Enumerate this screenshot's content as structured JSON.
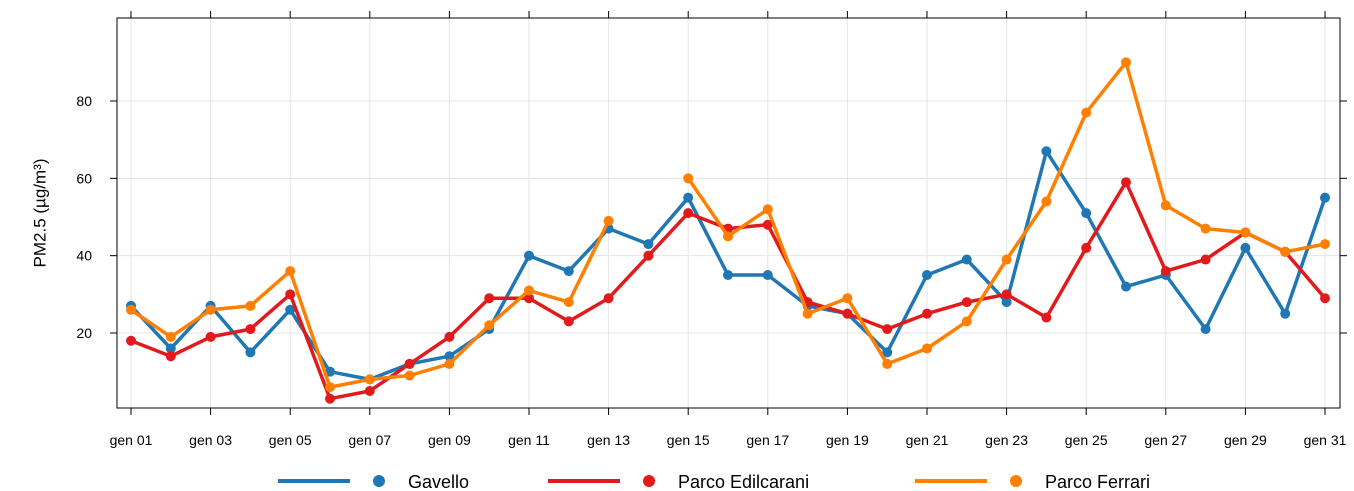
{
  "chart_data": {
    "type": "line",
    "title": "",
    "xlabel": "",
    "ylabel": "PM2.5 (µg/m³)",
    "ylim": [
      0,
      100
    ],
    "grid": true,
    "legend_position": "bottom",
    "x": [
      "gen 01",
      "gen 02",
      "gen 03",
      "gen 04",
      "gen 05",
      "gen 06",
      "gen 07",
      "gen 08",
      "gen 09",
      "gen 10",
      "gen 11",
      "gen 12",
      "gen 13",
      "gen 14",
      "gen 15",
      "gen 16",
      "gen 17",
      "gen 18",
      "gen 19",
      "gen 20",
      "gen 21",
      "gen 22",
      "gen 23",
      "gen 24",
      "gen 25",
      "gen 26",
      "gen 27",
      "gen 28",
      "gen 29",
      "gen 30",
      "gen 31"
    ],
    "x_tick_labels": [
      "gen 01",
      "gen 03",
      "gen 05",
      "gen 07",
      "gen 09",
      "gen 11",
      "gen 13",
      "gen 15",
      "gen 17",
      "gen 19",
      "gen 21",
      "gen 23",
      "gen 25",
      "gen 27",
      "gen 29",
      "gen 31"
    ],
    "y_ticks": [
      20,
      40,
      60,
      80
    ],
    "series": [
      {
        "name": "Gavello",
        "color": "#1f77b4",
        "values": [
          27,
          16,
          27,
          15,
          26,
          10,
          8,
          12,
          14,
          21,
          40,
          36,
          47,
          43,
          55,
          35,
          35,
          27,
          25,
          15,
          35,
          39,
          28,
          67,
          51,
          32,
          35,
          21,
          42,
          25,
          55
        ]
      },
      {
        "name": "Parco Edilcarani",
        "color": "#e31a1c",
        "values": [
          18,
          14,
          19,
          21,
          30,
          3,
          5,
          12,
          19,
          29,
          29,
          23,
          29,
          40,
          51,
          47,
          48,
          28,
          25,
          21,
          25,
          28,
          30,
          24,
          42,
          59,
          36,
          39,
          46,
          41,
          29
        ]
      },
      {
        "name": "Parco Ferrari",
        "color": "#ff7f00",
        "values": [
          26,
          19,
          26,
          27,
          36,
          6,
          8,
          9,
          12,
          22,
          31,
          28,
          49,
          null,
          60,
          45,
          52,
          25,
          29,
          12,
          16,
          23,
          39,
          54,
          77,
          90,
          53,
          47,
          46,
          41,
          43
        ]
      }
    ]
  }
}
